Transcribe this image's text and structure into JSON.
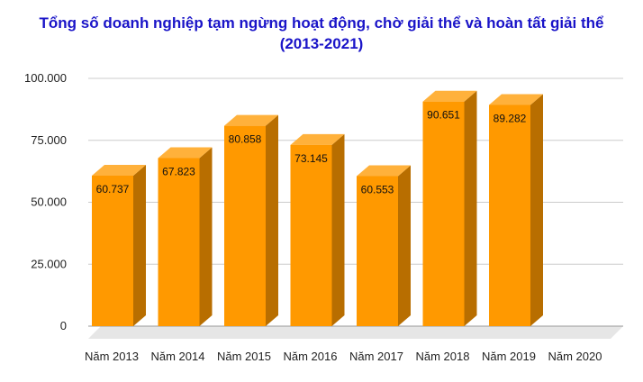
{
  "title_line1": "Tổng số doanh nghiệp tạm ngừng hoạt động, chờ giải thể và hoàn tất giải thể",
  "title_line2": "(2013-2021)",
  "colors": {
    "title": "#1a14c8",
    "bar_front": "#ff9900",
    "bar_side": "#b86e00",
    "bar_top": "#ffb13b",
    "grid": "#cccccc",
    "floor": "#e6e6e6"
  },
  "chart_data": {
    "type": "bar",
    "title": "Tổng số doanh nghiệp tạm ngừng hoạt động, chờ giải thể và hoàn tất giải thể (2013-2021)",
    "categories": [
      "Năm 2013",
      "Năm 2014",
      "Năm 2015",
      "Năm 2016",
      "Năm 2017",
      "Năm 2018",
      "Năm 2019",
      "Năm 2020"
    ],
    "values": [
      60737,
      67823,
      80858,
      73145,
      60553,
      90651,
      89282,
      null
    ],
    "data_labels": [
      "60.737",
      "67.823",
      "80.858",
      "73.145",
      "60.553",
      "90.651",
      "89.282",
      ""
    ],
    "y_ticks": [
      0,
      25000,
      50000,
      75000,
      100000
    ],
    "y_tick_labels": [
      "0",
      "25.000",
      "50.000",
      "75.000",
      "100.000"
    ],
    "ylim": [
      0,
      100000
    ],
    "xlabel": "",
    "ylabel": "",
    "grid": true,
    "style": "3d"
  }
}
